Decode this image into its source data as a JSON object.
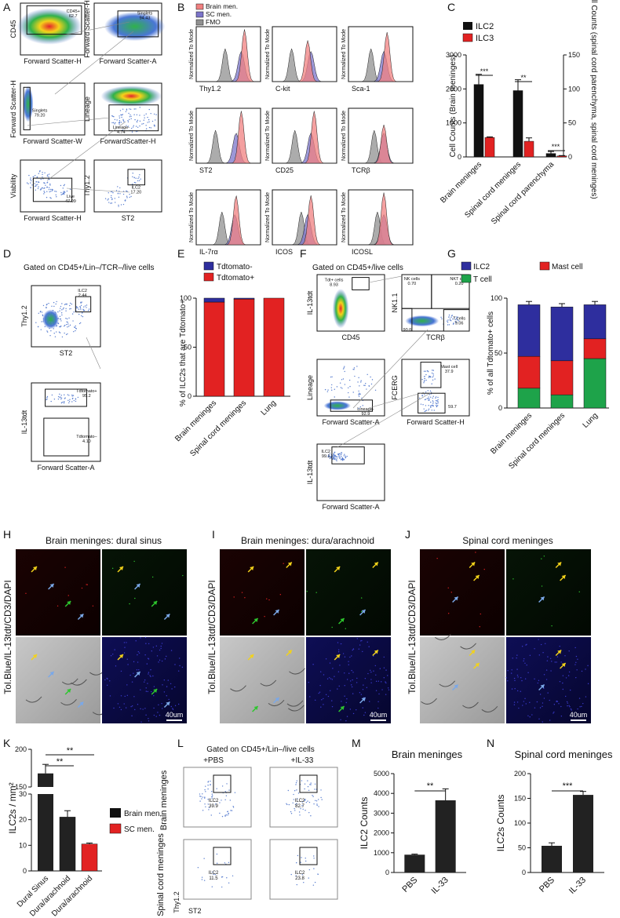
{
  "panel_letters": [
    "A",
    "B",
    "C",
    "D",
    "E",
    "F",
    "G",
    "H",
    "I",
    "J",
    "K",
    "L",
    "M",
    "N"
  ],
  "panel_a": {
    "plots": [
      {
        "ylabel": "CD45",
        "xlabel": "Forward Scatter-H",
        "gate": "CD45+",
        "value": "62.7"
      },
      {
        "ylabel": "Forward Scatter-H",
        "xlabel": "Forward Scatter-A",
        "gate": "Singlets",
        "value": "94.43"
      },
      {
        "ylabel": "Forward Scatter-H",
        "xlabel": "Forward Scatter-W",
        "gate": "Singlets",
        "value": "79.20"
      },
      {
        "ylabel": "Lineage",
        "xlabel": "ForwardScatter-H",
        "gate": "Lineage-",
        "value": "4.74"
      },
      {
        "ylabel": "Viability",
        "xlabel": "Forward Scatter-H",
        "gate": "Live",
        "value": "47.99"
      },
      {
        "ylabel": "Thy1.2",
        "xlabel": "ST2",
        "gate": "ILC2",
        "value": "17.20"
      }
    ]
  },
  "panel_b": {
    "legend": [
      "Brain men.",
      "SC men.",
      "FMO"
    ],
    "colors": [
      "#f08080",
      "#7b74c9",
      "#909090"
    ],
    "ylabel": "Normalized To Mode",
    "markers": [
      "Thy1.2",
      "C-kit",
      "Sca-1",
      "ST2",
      "CD25",
      "TCRβ",
      "IL-7rα",
      "ICOS",
      "ICOSL"
    ]
  },
  "panel_c": {
    "chart_data": {
      "type": "bar",
      "categories": [
        "Brain meninges",
        "Spinal cord meninges",
        "Spinal cord parenchyma"
      ],
      "series": [
        {
          "name": "ILC2",
          "values": [
            2130,
            1950,
            100
          ],
          "errors": [
            300,
            320,
            60
          ]
        },
        {
          "name": "ILC3",
          "values": [
            570,
            460,
            30
          ],
          "errors": [
            20,
            100,
            10
          ]
        }
      ],
      "ylabel": "Cell Counts (Brain meninges)",
      "y2label": "Cell Counts (spinal cord parenchyma, spinal cord meninges)",
      "ylim": [
        0,
        3000
      ],
      "yticks": [
        "0",
        "1000",
        "2000",
        "3000"
      ],
      "y2lim": [
        0,
        150
      ],
      "y2ticks": [
        "0",
        "50",
        "100",
        "150"
      ],
      "significance": [
        "***",
        "**",
        "***"
      ]
    }
  },
  "panel_d": {
    "title": "Gated on CD45+/Lin–/TCR–/live cells",
    "plots": [
      {
        "ylabel": "Thy1.2",
        "xlabel": "ST2",
        "gate": "ILC2",
        "value": "2.44"
      },
      {
        "ylabel": "IL-13tdt",
        "xlabel": "Forward Scatter-A",
        "gates": [
          {
            "gate": "Tdtomato+",
            "value": "95.2"
          },
          {
            "gate": "Tdtomato–",
            "value": "4.10"
          }
        ]
      }
    ]
  },
  "panel_e": {
    "chart_data": {
      "type": "bar",
      "legend": [
        "Tdtomato-",
        "Tdtomato+"
      ],
      "categories": [
        "Brain meninges",
        "Spinal cord meninges",
        "Lung"
      ],
      "series": [
        {
          "name": "Tdtomato+",
          "values": [
            96,
            99,
            100
          ]
        },
        {
          "name": "Tdtomato-",
          "values": [
            4,
            1,
            0
          ]
        }
      ],
      "ylabel": "% of ILC2s that are Tdtomato+",
      "ylim": [
        0,
        100
      ],
      "yticks": [
        "0",
        "50",
        "100"
      ]
    }
  },
  "panel_f": {
    "title": "Gated on CD45+/live cells",
    "plots": [
      {
        "ylabel": "IL-13tdt",
        "xlabel": "CD45",
        "gate": "Tdt+ cells",
        "value": "8.93"
      },
      {
        "ylabel": "NK1.1",
        "xlabel": "TCRβ",
        "gates": [
          {
            "gate": "NK cells",
            "value": "0.70"
          },
          {
            "gate": "NKT cells",
            "value": "0.20"
          },
          {
            "gate": "T cells",
            "value": "9.06"
          },
          {
            "gate": "",
            "value": "90.0"
          }
        ]
      },
      {
        "ylabel": "Lineage",
        "xlabel": "Forward Scatter-A",
        "gate": "Lineage-",
        "value": "92.9"
      },
      {
        "ylabel": "FCERG",
        "xlabel": "Forward Scatter-H",
        "gates": [
          {
            "gate": "Mast cell",
            "value": "37.9"
          },
          {
            "gate": "",
            "value": "59.7"
          }
        ]
      },
      {
        "ylabel": "IL-13tdt",
        "xlabel": "Forward Scatter-A",
        "gate": "ILC2",
        "value": "99.1"
      }
    ]
  },
  "panel_g": {
    "chart_data": {
      "type": "bar",
      "legend": [
        "ILC2",
        "Mast cell",
        "T cell"
      ],
      "colors": [
        "#2e2e9e",
        "#e22222",
        "#1ea34a"
      ],
      "categories": [
        "Brain meninges",
        "Spinal cord meninges",
        "Lung"
      ],
      "series": [
        {
          "name": "T cell",
          "values": [
            18,
            12,
            45
          ]
        },
        {
          "name": "Mast cell",
          "values": [
            29,
            31,
            18
          ]
        },
        {
          "name": "ILC2",
          "values": [
            47,
            49,
            31
          ]
        }
      ],
      "ylabel": "% of all Tdtomato+ cells",
      "ylim": [
        0,
        100
      ],
      "yticks": [
        "0",
        "50",
        "100"
      ]
    }
  },
  "panel_h": {
    "title": "Brain meninges: dural sinus",
    "stain": "Tol.Blue/IL-13tdt/CD3/DAPI",
    "scale": "40um"
  },
  "panel_i": {
    "title": "Brain meninges: dura/arachnoid",
    "stain": "Tol.Blue/IL-13tdt/CD3/DAPI",
    "scale": "40um"
  },
  "panel_j": {
    "title": "Spinal cord meninges",
    "stain": "Tol.Blue/IL-13tdt/CD3/DAPI",
    "scale": "40um"
  },
  "panel_k": {
    "chart_data": {
      "type": "bar",
      "categories": [
        "Dural Sinus",
        "Dura/arachnoid",
        "Dura/arachnoid"
      ],
      "values": [
        168,
        21,
        10.5
      ],
      "errors": [
        12,
        2.5,
        0.4
      ],
      "groups": [
        "Brain men.",
        "Brain men.",
        "SC men."
      ],
      "legend": [
        "Brain men.",
        "SC men."
      ],
      "ylabel": "ILC2s / mm²",
      "ylim": [
        0,
        200
      ],
      "yticks": [
        "0",
        "10",
        "20",
        "30",
        "150",
        "200"
      ],
      "significance": [
        "**",
        "**"
      ]
    }
  },
  "panel_l": {
    "title": "Gated on CD45+/Lin–/live cells",
    "columns": [
      "+PBS",
      "+IL-33"
    ],
    "rows": [
      "Brain meninges",
      "Spinal cord meninges"
    ],
    "ylabel": "Thy1.2",
    "xlabel": "ST2",
    "gates": [
      {
        "gate": "ILC2",
        "value": "39.9"
      },
      {
        "gate": "ILC2",
        "value": "82.7"
      },
      {
        "gate": "ILC2",
        "value": "11.5"
      },
      {
        "gate": "ILC2",
        "value": "23.8"
      }
    ]
  },
  "panel_m": {
    "chart_data": {
      "type": "bar",
      "title": "Brain meninges",
      "categories": [
        "PBS",
        "IL-33"
      ],
      "values": [
        900,
        3650
      ],
      "errors": [
        30,
        580
      ],
      "ylabel": "ILC2 Counts",
      "ylim": [
        0,
        5000
      ],
      "yticks": [
        "0",
        "1000",
        "2000",
        "3000",
        "4000",
        "5000"
      ],
      "significance": "**"
    }
  },
  "panel_n": {
    "chart_data": {
      "type": "bar",
      "title": "Spinal cord meninges",
      "categories": [
        "PBS",
        "IL-33"
      ],
      "values": [
        54,
        157
      ],
      "errors": [
        6,
        7
      ],
      "ylabel": "ILC2s Counts",
      "ylim": [
        0,
        200
      ],
      "yticks": [
        "0",
        "50",
        "100",
        "150",
        "200"
      ],
      "significance": "***"
    }
  }
}
